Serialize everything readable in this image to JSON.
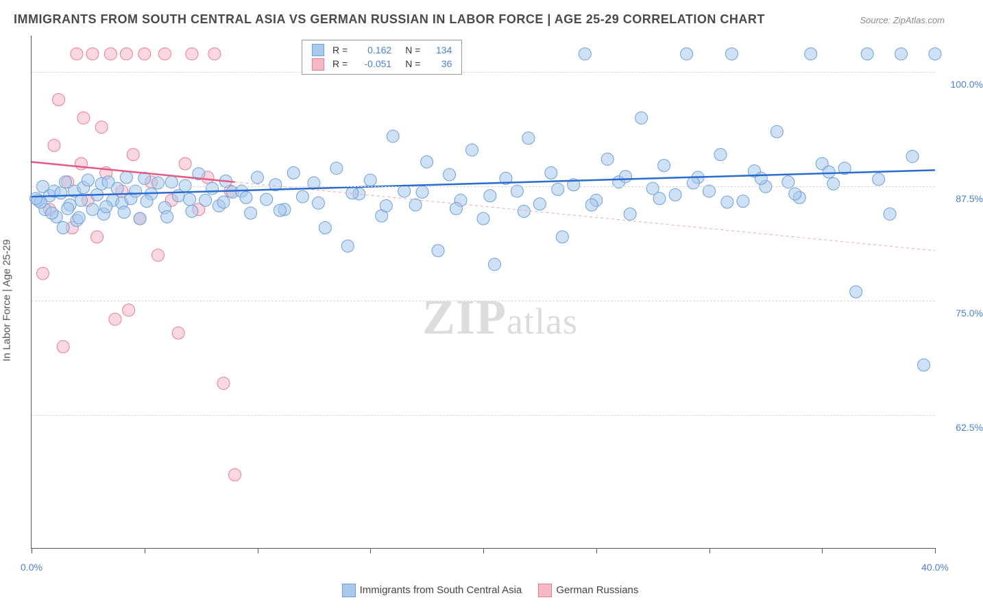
{
  "title": "IMMIGRANTS FROM SOUTH CENTRAL ASIA VS GERMAN RUSSIAN IN LABOR FORCE | AGE 25-29 CORRELATION CHART",
  "source": "Source: ZipAtlas.com",
  "ylabel": "In Labor Force | Age 25-29",
  "watermark_zip": "ZIP",
  "watermark_atlas": "atlas",
  "chart": {
    "type": "scatter",
    "xlim": [
      0,
      40
    ],
    "ylim": [
      48,
      104
    ],
    "xticks": [
      0,
      5,
      10,
      15,
      20,
      25,
      30,
      35,
      40
    ],
    "xtick_labels": {
      "0": "0.0%",
      "40": "40.0%"
    },
    "yticks": [
      62.5,
      75.0,
      87.5,
      100.0
    ],
    "ytick_labels": [
      "62.5%",
      "75.0%",
      "87.5%",
      "100.0%"
    ],
    "background_color": "#ffffff",
    "grid_color": "#d7d7d7",
    "axis_color": "#555555",
    "series": [
      {
        "name": "Immigrants from South Central Asia",
        "color_fill": "#a8c8ec",
        "color_stroke": "#6d9ed9",
        "fill_opacity": 0.55,
        "trend": {
          "x1": 0,
          "y1": 86.4,
          "x2": 40,
          "y2": 89.3,
          "color": "#2a6bd1",
          "width": 2.5,
          "dash": "none"
        },
        "R": "0.162",
        "N": "134",
        "marker_r": 9,
        "points": [
          [
            0.3,
            86
          ],
          [
            0.5,
            87.5
          ],
          [
            0.6,
            85
          ],
          [
            0.8,
            86.5
          ],
          [
            1.0,
            87
          ],
          [
            1.1,
            84.2
          ],
          [
            1.3,
            86.8
          ],
          [
            1.5,
            88
          ],
          [
            1.7,
            85.5
          ],
          [
            1.9,
            87
          ],
          [
            2.0,
            83.8
          ],
          [
            2.2,
            86
          ],
          [
            2.3,
            87.4
          ],
          [
            2.5,
            88.2
          ],
          [
            2.7,
            85
          ],
          [
            2.9,
            86.6
          ],
          [
            3.1,
            87.8
          ],
          [
            3.2,
            84.5
          ],
          [
            3.4,
            88
          ],
          [
            3.6,
            86
          ],
          [
            3.8,
            87.3
          ],
          [
            4.0,
            85.7
          ],
          [
            4.2,
            88.5
          ],
          [
            4.4,
            86.2
          ],
          [
            4.6,
            87
          ],
          [
            4.8,
            84
          ],
          [
            5.0,
            88.4
          ],
          [
            5.3,
            86.7
          ],
          [
            5.6,
            87.9
          ],
          [
            5.9,
            85.2
          ],
          [
            6.2,
            88
          ],
          [
            6.5,
            86.5
          ],
          [
            6.8,
            87.6
          ],
          [
            7.1,
            84.8
          ],
          [
            7.4,
            88.9
          ],
          [
            7.7,
            86
          ],
          [
            8.0,
            87.3
          ],
          [
            8.3,
            85.4
          ],
          [
            8.6,
            88.1
          ],
          [
            8.9,
            86.9
          ],
          [
            9.3,
            87
          ],
          [
            9.7,
            84.6
          ],
          [
            10.0,
            88.5
          ],
          [
            10.4,
            86.1
          ],
          [
            10.8,
            87.7
          ],
          [
            11.2,
            85
          ],
          [
            11.6,
            89
          ],
          [
            12.0,
            86.4
          ],
          [
            12.5,
            87.9
          ],
          [
            13.0,
            83
          ],
          [
            13.5,
            89.5
          ],
          [
            14.0,
            81
          ],
          [
            14.5,
            86.7
          ],
          [
            15.0,
            88.2
          ],
          [
            15.5,
            84.3
          ],
          [
            16.0,
            93
          ],
          [
            16.5,
            87
          ],
          [
            17.0,
            85.5
          ],
          [
            17.5,
            90.2
          ],
          [
            18.0,
            80.5
          ],
          [
            18.5,
            88.8
          ],
          [
            19.0,
            86
          ],
          [
            19.5,
            91.5
          ],
          [
            20.0,
            84
          ],
          [
            20.5,
            79
          ],
          [
            21.0,
            88.4
          ],
          [
            21.5,
            87
          ],
          [
            22.0,
            92.8
          ],
          [
            22.5,
            85.6
          ],
          [
            23.0,
            89
          ],
          [
            23.5,
            82
          ],
          [
            24.0,
            87.7
          ],
          [
            24.5,
            102
          ],
          [
            25.0,
            86
          ],
          [
            25.5,
            90.5
          ],
          [
            26.0,
            88
          ],
          [
            26.5,
            84.5
          ],
          [
            27.0,
            95
          ],
          [
            27.5,
            87.3
          ],
          [
            28.0,
            89.8
          ],
          [
            28.5,
            86.6
          ],
          [
            29.0,
            102
          ],
          [
            29.5,
            88.5
          ],
          [
            30.0,
            87
          ],
          [
            30.5,
            91
          ],
          [
            31.0,
            102
          ],
          [
            31.5,
            85.9
          ],
          [
            32.0,
            89.2
          ],
          [
            32.5,
            87.5
          ],
          [
            33.0,
            93.5
          ],
          [
            33.5,
            88
          ],
          [
            34.0,
            86.3
          ],
          [
            34.5,
            102
          ],
          [
            35.0,
            90
          ],
          [
            35.5,
            87.8
          ],
          [
            36.0,
            89.5
          ],
          [
            36.5,
            76
          ],
          [
            37.0,
            102
          ],
          [
            37.5,
            88.3
          ],
          [
            38.0,
            84.5
          ],
          [
            38.5,
            102
          ],
          [
            39.0,
            90.8
          ],
          [
            39.5,
            68
          ],
          [
            40.0,
            102
          ],
          [
            1.4,
            83
          ],
          [
            2.1,
            84.1
          ],
          [
            0.9,
            84.6
          ],
          [
            1.6,
            85.1
          ],
          [
            0.4,
            85.8
          ],
          [
            0.2,
            86.2
          ],
          [
            3.3,
            85.3
          ],
          [
            4.1,
            84.7
          ],
          [
            5.1,
            85.9
          ],
          [
            6.0,
            84.2
          ],
          [
            7.0,
            86.1
          ],
          [
            8.5,
            85.8
          ],
          [
            9.5,
            86.3
          ],
          [
            11.0,
            84.9
          ],
          [
            12.7,
            85.7
          ],
          [
            14.2,
            86.8
          ],
          [
            15.7,
            85.4
          ],
          [
            17.3,
            86.9
          ],
          [
            18.8,
            85.1
          ],
          [
            20.3,
            86.5
          ],
          [
            21.8,
            84.8
          ],
          [
            23.3,
            87.2
          ],
          [
            24.8,
            85.5
          ],
          [
            26.3,
            88.6
          ],
          [
            27.8,
            86.2
          ],
          [
            29.3,
            87.9
          ],
          [
            30.8,
            85.8
          ],
          [
            32.3,
            88.4
          ],
          [
            33.8,
            86.7
          ],
          [
            35.3,
            89.1
          ]
        ]
      },
      {
        "name": "German Russians",
        "color_fill": "#f6b8c5",
        "color_stroke": "#ea7a97",
        "fill_opacity": 0.55,
        "trend_solid": {
          "x1": 0,
          "y1": 90.2,
          "x2": 9,
          "y2": 88.0,
          "color": "#e35a82",
          "width": 2.5
        },
        "trend_dash": {
          "x1": 9,
          "y1": 88.0,
          "x2": 40,
          "y2": 80.5,
          "color": "#f2a5b8",
          "width": 1,
          "dash": "4,4"
        },
        "R": "-0.051",
        "N": "36",
        "marker_r": 9,
        "points": [
          [
            0.5,
            78
          ],
          [
            0.8,
            85
          ],
          [
            1.0,
            92
          ],
          [
            1.2,
            97
          ],
          [
            1.4,
            70
          ],
          [
            1.6,
            88
          ],
          [
            1.8,
            83
          ],
          [
            2.0,
            102
          ],
          [
            2.2,
            90
          ],
          [
            2.5,
            86
          ],
          [
            2.7,
            102
          ],
          [
            2.9,
            82
          ],
          [
            3.1,
            94
          ],
          [
            3.3,
            89
          ],
          [
            3.5,
            102
          ],
          [
            3.7,
            73
          ],
          [
            4.0,
            87
          ],
          [
            4.2,
            102
          ],
          [
            4.5,
            91
          ],
          [
            4.8,
            84
          ],
          [
            5.0,
            102
          ],
          [
            5.3,
            88
          ],
          [
            5.6,
            80
          ],
          [
            5.9,
            102
          ],
          [
            6.2,
            86
          ],
          [
            6.5,
            71.5
          ],
          [
            6.8,
            90
          ],
          [
            7.1,
            102
          ],
          [
            7.4,
            85
          ],
          [
            7.8,
            88.5
          ],
          [
            8.1,
            102
          ],
          [
            8.5,
            66
          ],
          [
            8.8,
            87
          ],
          [
            9.0,
            56
          ],
          [
            4.3,
            74
          ],
          [
            2.3,
            95
          ]
        ]
      }
    ]
  },
  "legend_top": {
    "rows": [
      {
        "swatch_fill": "#a8c8ec",
        "swatch_stroke": "#6d9ed9",
        "r_label": "R =",
        "r_val": "0.162",
        "n_label": "N =",
        "n_val": "134"
      },
      {
        "swatch_fill": "#f6b8c5",
        "swatch_stroke": "#ea7a97",
        "r_label": "R =",
        "r_val": "-0.051",
        "n_label": "N =",
        "n_val": "36"
      }
    ]
  },
  "legend_bottom": {
    "items": [
      {
        "swatch_fill": "#a8c8ec",
        "swatch_stroke": "#6d9ed9",
        "label": "Immigrants from South Central Asia"
      },
      {
        "swatch_fill": "#f6b8c5",
        "swatch_stroke": "#ea7a97",
        "label": "German Russians"
      }
    ]
  }
}
